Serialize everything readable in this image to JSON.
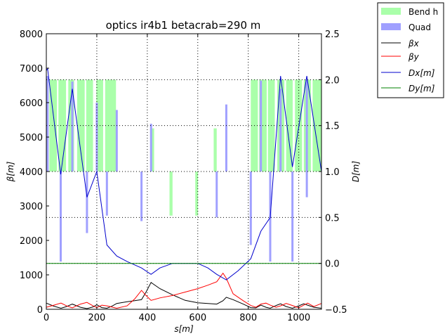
{
  "chart_data": {
    "type": "line",
    "title": "optics ir4b1 betacrab=290 m",
    "xlabel": "s[m]",
    "ylabel": "β[m]",
    "y2label": "D[m]",
    "xlim": [
      0,
      1090
    ],
    "ylim": [
      0,
      8000
    ],
    "y2lim": [
      -0.5,
      2.5
    ],
    "xticks": [
      0,
      200,
      400,
      600,
      800,
      1000
    ],
    "yticks": [
      0,
      1000,
      2000,
      3000,
      4000,
      5000,
      6000,
      7000,
      8000
    ],
    "y2ticks": [
      -0.5,
      0.0,
      0.5,
      1.0,
      1.5,
      2.0,
      2.5
    ],
    "grid": true,
    "legend_position": "outside-top-right",
    "legend": [
      "Bend h",
      "Quad",
      "βx",
      "βy",
      "Dx[m]",
      "Dy[m]"
    ],
    "colors": {
      "bend": "#aaffaa",
      "quad": "#a0a0ff",
      "betax": "#000000",
      "betay": "#ff0000",
      "dx": "#0000cc",
      "dy": "#008000"
    },
    "bends": [
      {
        "s0": 0,
        "s1": 7,
        "b0": 1.0,
        "b1": 2.0
      },
      {
        "s0": 12,
        "s1": 42,
        "b0": 1.0,
        "b1": 2.0
      },
      {
        "s0": 48,
        "s1": 78,
        "b0": 1.0,
        "b1": 2.0
      },
      {
        "s0": 87,
        "s1": 110,
        "b0": 1.0,
        "b1": 2.0
      },
      {
        "s0": 122,
        "s1": 152,
        "b0": 1.0,
        "b1": 2.0
      },
      {
        "s0": 158,
        "s1": 185,
        "b0": 1.0,
        "b1": 2.0
      },
      {
        "s0": 198,
        "s1": 225,
        "b0": 1.0,
        "b1": 2.0
      },
      {
        "s0": 233,
        "s1": 276,
        "b0": 1.0,
        "b1": 2.0
      },
      {
        "s0": 413,
        "s1": 427,
        "b0": 1.0,
        "b1": 1.47
      },
      {
        "s0": 488,
        "s1": 500,
        "b0": 0.52,
        "b1": 1.0
      },
      {
        "s0": 590,
        "s1": 601,
        "b0": 0.52,
        "b1": 1.0
      },
      {
        "s0": 663,
        "s1": 675,
        "b0": 1.0,
        "b1": 1.47
      },
      {
        "s0": 810,
        "s1": 838,
        "b0": 1.0,
        "b1": 2.0
      },
      {
        "s0": 843,
        "s1": 873,
        "b0": 1.0,
        "b1": 2.0
      },
      {
        "s0": 878,
        "s1": 905,
        "b0": 1.0,
        "b1": 2.0
      },
      {
        "s0": 915,
        "s1": 943,
        "b0": 1.0,
        "b1": 2.0
      },
      {
        "s0": 950,
        "s1": 976,
        "b0": 1.0,
        "b1": 2.0
      },
      {
        "s0": 985,
        "s1": 1013,
        "b0": 1.0,
        "b1": 2.0
      },
      {
        "s0": 1020,
        "s1": 1048,
        "b0": 1.0,
        "b1": 2.0
      },
      {
        "s0": 1055,
        "s1": 1090,
        "b0": 1.0,
        "b1": 2.0
      }
    ],
    "quads": [
      {
        "s": 5,
        "b0": 1.0,
        "b1": 2.04
      },
      {
        "s": 57,
        "b0": 0.02,
        "b1": 1.0
      },
      {
        "s": 103,
        "b0": 1.0,
        "b1": 1.98
      },
      {
        "s": 161,
        "b0": 0.33,
        "b1": 1.0
      },
      {
        "s": 200,
        "b0": 1.0,
        "b1": 1.75
      },
      {
        "s": 240,
        "b0": 0.52,
        "b1": 1.0
      },
      {
        "s": 279,
        "b0": 1.0,
        "b1": 1.67
      },
      {
        "s": 377,
        "b0": 0.46,
        "b1": 1.0
      },
      {
        "s": 415,
        "b0": 1.0,
        "b1": 1.52
      },
      {
        "s": 675,
        "b0": 0.5,
        "b1": 1.0
      },
      {
        "s": 713,
        "b0": 1.0,
        "b1": 1.73
      },
      {
        "s": 810,
        "b0": 0.2,
        "b1": 1.0
      },
      {
        "s": 850,
        "b0": 1.0,
        "b1": 1.99
      },
      {
        "s": 887,
        "b0": 0.02,
        "b1": 1.0
      },
      {
        "s": 928,
        "b0": 1.0,
        "b1": 1.9
      },
      {
        "s": 975,
        "b0": 0.02,
        "b1": 1.0
      },
      {
        "s": 1032,
        "b0": 0.72,
        "b1": 1.0
      },
      {
        "s": 1032,
        "b0": 1.0,
        "b1": 2.0
      }
    ],
    "series": [
      {
        "name": "βx",
        "x": [
          0,
          30,
          58,
          80,
          103,
          135,
          161,
          185,
          200,
          220,
          240,
          260,
          279,
          320,
          350,
          377,
          395,
          415,
          450,
          500,
          550,
          600,
          640,
          675,
          700,
          713,
          740,
          780,
          810,
          830,
          850,
          870,
          887,
          910,
          928,
          950,
          975,
          1000,
          1020,
          1035,
          1060,
          1090
        ],
        "y": [
          180,
          90,
          30,
          80,
          150,
          60,
          20,
          70,
          130,
          50,
          30,
          90,
          170,
          220,
          250,
          280,
          500,
          780,
          600,
          420,
          260,
          190,
          170,
          150,
          250,
          350,
          280,
          150,
          50,
          40,
          120,
          60,
          30,
          110,
          160,
          80,
          30,
          100,
          160,
          120,
          60,
          30
        ]
      },
      {
        "name": "βy",
        "x": [
          0,
          30,
          58,
          80,
          103,
          135,
          161,
          185,
          200,
          220,
          240,
          279,
          320,
          350,
          377,
          395,
          415,
          450,
          500,
          550,
          600,
          640,
          675,
          700,
          713,
          740,
          780,
          810,
          830,
          850,
          870,
          887,
          910,
          928,
          950,
          975,
          1000,
          1020,
          1035,
          1060,
          1090
        ],
        "y": [
          60,
          120,
          180,
          100,
          40,
          150,
          200,
          100,
          50,
          120,
          100,
          30,
          100,
          300,
          550,
          400,
          260,
          330,
          400,
          500,
          600,
          700,
          800,
          1050,
          900,
          450,
          250,
          110,
          60,
          150,
          180,
          120,
          60,
          100,
          170,
          110,
          40,
          120,
          180,
          80,
          170
        ]
      },
      {
        "name": "Dx[m]",
        "x": [
          0,
          5,
          57,
          103,
          161,
          200,
          240,
          279,
          320,
          377,
          415,
          450,
          500,
          550,
          600,
          640,
          675,
          713,
          760,
          810,
          850,
          887,
          928,
          975,
          1032,
          1090
        ],
        "y": [
          2.1,
          2.12,
          0.97,
          1.9,
          0.72,
          1.0,
          0.2,
          0.08,
          0.02,
          -0.05,
          -0.12,
          -0.05,
          0.0,
          0.0,
          0.0,
          -0.05,
          -0.12,
          -0.18,
          -0.08,
          0.05,
          0.35,
          0.5,
          2.04,
          1.05,
          2.04,
          1.0
        ]
      },
      {
        "name": "Dy[m]",
        "x": [
          0,
          1090
        ],
        "y": [
          0.0,
          0.0
        ]
      }
    ]
  }
}
